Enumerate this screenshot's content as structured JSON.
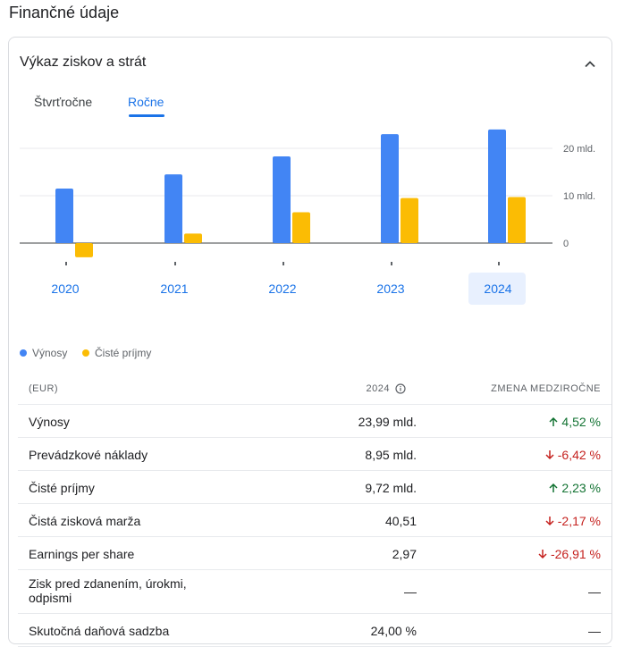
{
  "section_title": "Finančné údaje",
  "card": {
    "title": "Výkaz ziskov a strát",
    "tabs": [
      "Štvrťročne",
      "Ročne"
    ],
    "selected_tab": "Ročne"
  },
  "chart_data": {
    "type": "bar",
    "categories": [
      "2020",
      "2021",
      "2022",
      "2023",
      "2024"
    ],
    "series": [
      {
        "name": "Výnosy",
        "values": [
          11.5,
          14.5,
          18.3,
          23.0,
          23.99
        ],
        "color": "#4285f4"
      },
      {
        "name": "Čisté príjmy",
        "values": [
          -3.0,
          2.0,
          6.5,
          9.5,
          9.72
        ],
        "color": "#fbbc04"
      }
    ],
    "ylim": [
      -4,
      25
    ],
    "y_ticks": [
      0,
      10,
      20
    ],
    "y_tick_labels": [
      "0",
      "10 mld.",
      "20 mld."
    ],
    "selected_category": "2024",
    "legend": "bottom-left",
    "grid": true
  },
  "table": {
    "header": {
      "currency": "(EUR)",
      "period": "2024",
      "change": "ZMENA MEDZIROČNE"
    },
    "rows": [
      {
        "label": "Výnosy",
        "value": "23,99 mld.",
        "change": "4,52 %",
        "direction": "up"
      },
      {
        "label": "Prevádzkové náklady",
        "value": "8,95 mld.",
        "change": "-6,42 %",
        "direction": "down"
      },
      {
        "label": "Čisté príjmy",
        "value": "9,72 mld.",
        "change": "2,23 %",
        "direction": "up"
      },
      {
        "label": "Čistá zisková marža",
        "value": "40,51",
        "change": "-2,17 %",
        "direction": "down"
      },
      {
        "label": "Earnings per share",
        "value": "2,97",
        "change": "-26,91 %",
        "direction": "down"
      },
      {
        "label": "Zisk pred zdanením, úrokmi, odpismi",
        "value": "—",
        "change": "—",
        "direction": "none"
      },
      {
        "label": "Skutočná daňová sadzba",
        "value": "24,00 %",
        "change": "—",
        "direction": "none"
      }
    ]
  },
  "colors": {
    "accent": "#1a73e8",
    "up": "#137333",
    "down": "#c5221f",
    "revenue": "#4285f4",
    "net_income": "#fbbc04"
  }
}
